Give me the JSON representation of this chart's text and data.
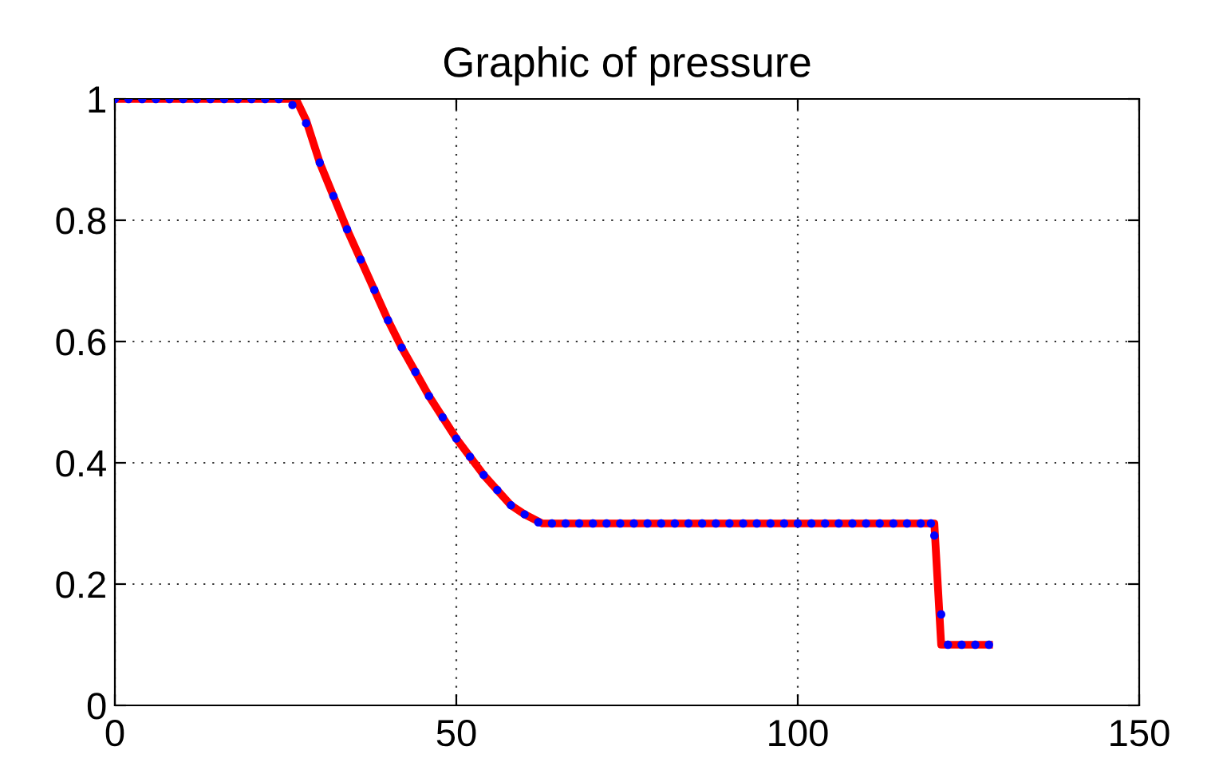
{
  "chart_data": {
    "type": "line",
    "title": "Graphic of pressure",
    "xlim": [
      0,
      150
    ],
    "xticks": [
      0,
      50,
      100,
      150
    ],
    "ylim": [
      0,
      1
    ],
    "yticks": [
      0,
      0.2,
      0.4,
      0.6,
      0.8,
      1
    ],
    "grid": true,
    "line_style": "solid",
    "series": [
      {
        "color": "#ff0000",
        "x": [
          0,
          26.5,
          28,
          30,
          32,
          34,
          36,
          38,
          40,
          42,
          44,
          46,
          48,
          50,
          52,
          54,
          56,
          58,
          60,
          62.6,
          120,
          121,
          128
        ],
        "values": [
          1,
          1,
          0.965,
          0.895,
          0.84,
          0.785,
          0.735,
          0.685,
          0.635,
          0.59,
          0.55,
          0.51,
          0.475,
          0.44,
          0.41,
          0.38,
          0.355,
          0.33,
          0.315,
          0.3,
          0.3,
          0.1,
          0.1
        ]
      },
      {
        "type": "scatter",
        "color": "#0000ff",
        "marker": "circle",
        "x": [
          0,
          2,
          4,
          6,
          8,
          10,
          12,
          14,
          16,
          18,
          20,
          22,
          24,
          26,
          28,
          30,
          32,
          34,
          36,
          38,
          40,
          42,
          44,
          46,
          48,
          50,
          52,
          54,
          56,
          58,
          60,
          62,
          64,
          66,
          68,
          70,
          72,
          74,
          76,
          78,
          80,
          82,
          84,
          86,
          88,
          90,
          92,
          94,
          96,
          98,
          100,
          102,
          104,
          106,
          108,
          110,
          112,
          114,
          116,
          118,
          119.5,
          120,
          121,
          122,
          124,
          126,
          128
        ],
        "values": [
          1,
          1,
          1,
          1,
          1,
          1,
          1,
          1,
          1,
          1,
          1,
          1,
          1,
          0.99,
          0.96,
          0.895,
          0.84,
          0.785,
          0.735,
          0.685,
          0.635,
          0.59,
          0.55,
          0.51,
          0.475,
          0.44,
          0.41,
          0.38,
          0.355,
          0.33,
          0.315,
          0.302,
          0.3,
          0.3,
          0.3,
          0.3,
          0.3,
          0.3,
          0.3,
          0.3,
          0.3,
          0.3,
          0.3,
          0.3,
          0.3,
          0.3,
          0.3,
          0.3,
          0.3,
          0.3,
          0.3,
          0.3,
          0.3,
          0.3,
          0.3,
          0.3,
          0.3,
          0.3,
          0.3,
          0.3,
          0.3,
          0.28,
          0.15,
          0.1,
          0.1,
          0.1,
          0.1
        ]
      }
    ]
  }
}
